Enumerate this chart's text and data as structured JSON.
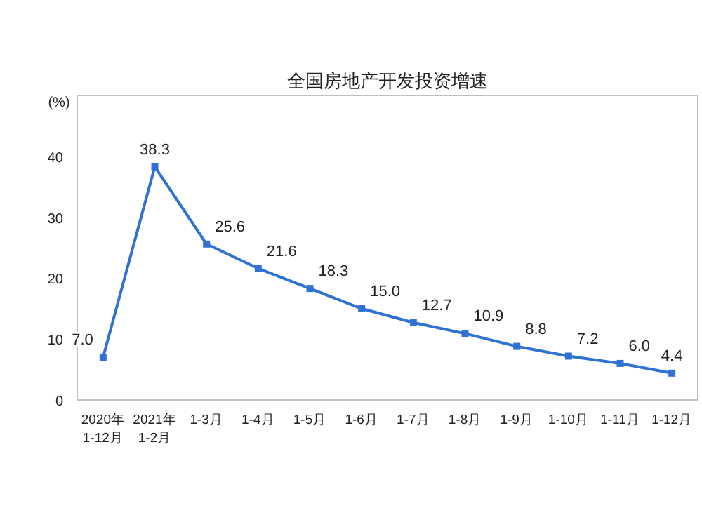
{
  "chart_data": {
    "type": "line",
    "title": "全国房地产开发投资增速",
    "ylabel": "(%)",
    "categories": [
      "2020年\n1-12月",
      "2021年\n1-2月",
      "1-3月",
      "1-4月",
      "1-5月",
      "1-6月",
      "1-7月",
      "1-8月",
      "1-9月",
      "1-10月",
      "1-11月",
      "1-12月"
    ],
    "series": [
      {
        "color": "#2f72d4",
        "values": [
          7.0,
          38.3,
          25.6,
          21.6,
          18.3,
          15.0,
          12.7,
          10.9,
          8.8,
          7.2,
          6.0,
          4.4
        ],
        "value_labels": [
          "7.0",
          "38.3",
          "25.6",
          "21.6",
          "18.3",
          "15.0",
          "12.7",
          "10.9",
          "8.8",
          "7.2",
          "6.0",
          "4.4"
        ]
      }
    ],
    "ylim": [
      0,
      50
    ],
    "yticks": [
      0,
      10,
      20,
      30,
      40
    ],
    "marker": "square",
    "grid": false
  }
}
